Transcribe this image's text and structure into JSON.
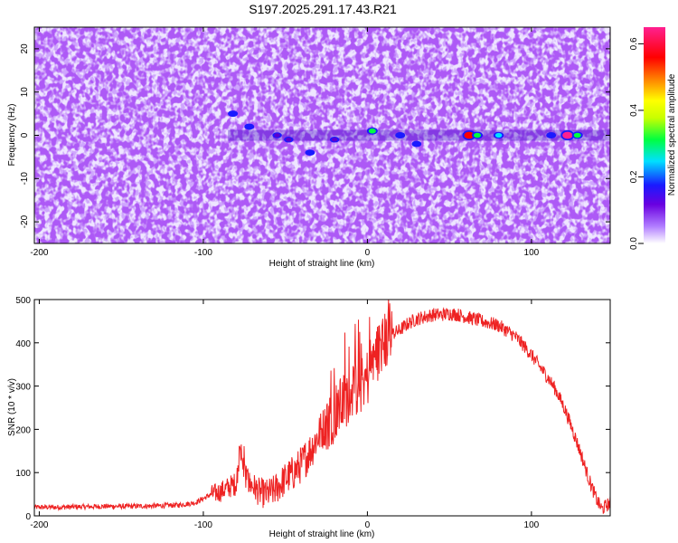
{
  "title": "S197.2025.291.17.43.R21",
  "chart_data": [
    {
      "type": "heatmap",
      "xlabel": "Height of straight line (km)",
      "ylabel": "Frequency (Hz)",
      "xlim": [
        -203,
        148
      ],
      "ylim": [
        -25,
        25
      ],
      "x_ticks": [
        -200,
        -100,
        0,
        100
      ],
      "y_ticks": [
        -20,
        -10,
        0,
        10,
        20
      ],
      "colorbar": {
        "label": "Normalized spectral amplitude",
        "range": [
          0.0,
          0.65
        ],
        "ticks": [
          0.0,
          0.2,
          0.4,
          0.6
        ],
        "colors": [
          "#ffffff",
          "#9a4dff",
          "#5a00d0",
          "#1a1aff",
          "#00e0ff",
          "#00ff40",
          "#c8ff00",
          "#ffff00",
          "#ff8000",
          "#ff0000",
          "#ff2090"
        ]
      },
      "features": [
        {
          "x": -82,
          "y": 5,
          "value": 0.2
        },
        {
          "x": -72,
          "y": 2,
          "value": 0.2
        },
        {
          "x": -55,
          "y": 0,
          "value": 0.15
        },
        {
          "x": -48,
          "y": -1,
          "value": 0.15
        },
        {
          "x": -35,
          "y": -4,
          "value": 0.18
        },
        {
          "x": -20,
          "y": -1,
          "value": 0.15
        },
        {
          "x": 3,
          "y": 1,
          "value": 0.3
        },
        {
          "x": 20,
          "y": 0,
          "value": 0.2
        },
        {
          "x": 30,
          "y": -2,
          "value": 0.18
        },
        {
          "x": 62,
          "y": 0,
          "value": 0.6
        },
        {
          "x": 67,
          "y": 0,
          "value": 0.3
        },
        {
          "x": 80,
          "y": 0,
          "value": 0.25
        },
        {
          "x": 112,
          "y": 0,
          "value": 0.2
        },
        {
          "x": 122,
          "y": 0,
          "value": 0.62
        },
        {
          "x": 128,
          "y": 0,
          "value": 0.3
        }
      ]
    },
    {
      "type": "line",
      "xlabel": "Height of straight line (km)",
      "ylabel": "SNR (10 * v/v)",
      "xlim": [
        -203,
        148
      ],
      "ylim": [
        0,
        500
      ],
      "x_ticks": [
        -200,
        -100,
        0,
        100
      ],
      "y_ticks": [
        0,
        100,
        200,
        300,
        400,
        500
      ],
      "color": "#ee2222",
      "x": [
        -203,
        -190,
        -175,
        -160,
        -145,
        -130,
        -115,
        -105,
        -100,
        -95,
        -90,
        -85,
        -80,
        -78,
        -76,
        -74,
        -72,
        -70,
        -66,
        -62,
        -58,
        -55,
        -50,
        -45,
        -40,
        -35,
        -30,
        -25,
        -20,
        -15,
        -10,
        -5,
        0,
        5,
        10,
        15,
        20,
        25,
        30,
        35,
        40,
        45,
        50,
        55,
        60,
        65,
        70,
        75,
        80,
        85,
        90,
        95,
        100,
        105,
        110,
        115,
        120,
        125,
        130,
        135,
        140,
        143,
        146,
        148
      ],
      "y": [
        20,
        20,
        21,
        22,
        22,
        23,
        25,
        30,
        40,
        50,
        55,
        65,
        75,
        140,
        120,
        85,
        75,
        70,
        55,
        50,
        55,
        65,
        85,
        100,
        120,
        150,
        185,
        215,
        240,
        260,
        290,
        300,
        320,
        370,
        400,
        420,
        430,
        445,
        455,
        460,
        465,
        465,
        468,
        465,
        460,
        455,
        450,
        445,
        440,
        428,
        415,
        395,
        372,
        345,
        320,
        290,
        250,
        200,
        145,
        85,
        35,
        15,
        25,
        30
      ]
    }
  ]
}
